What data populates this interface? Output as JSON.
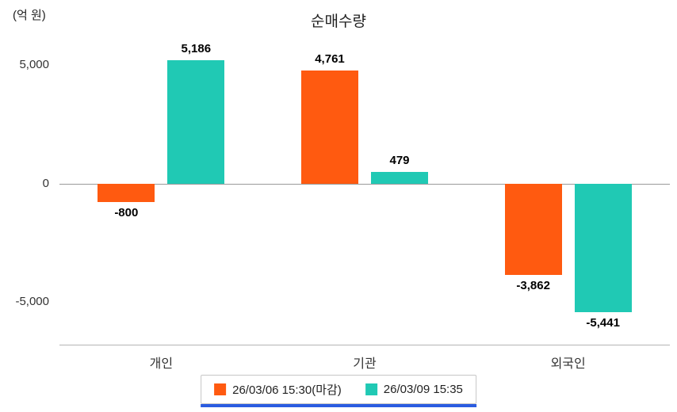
{
  "title": "순매수량",
  "unit_label": "(억 원)",
  "chart_data": {
    "type": "bar",
    "categories": [
      "개인",
      "기관",
      "외국인"
    ],
    "series": [
      {
        "name": "26/03/06 15:30(마감)",
        "color": "#ff5a10",
        "values": [
          -800,
          4761,
          -3862
        ],
        "labels": [
          "-800",
          "4,761",
          "-3,862"
        ]
      },
      {
        "name": "26/03/09 15:35",
        "color": "#20c9b4",
        "values": [
          5186,
          479,
          -5441
        ],
        "labels": [
          "5,186",
          "479",
          "-5,441"
        ]
      }
    ],
    "yticks": [
      {
        "value": 5000,
        "label": "5,000"
      },
      {
        "value": 0,
        "label": "0"
      },
      {
        "value": -5000,
        "label": "-5,000"
      }
    ],
    "ylim": [
      -6800,
      5800
    ],
    "grid": false,
    "legend_position": "bottom",
    "legend_underline_color": "#2b5ce0",
    "zero_line_color": "#9a9a9a",
    "axis_line_color": "#b5b5b5"
  }
}
